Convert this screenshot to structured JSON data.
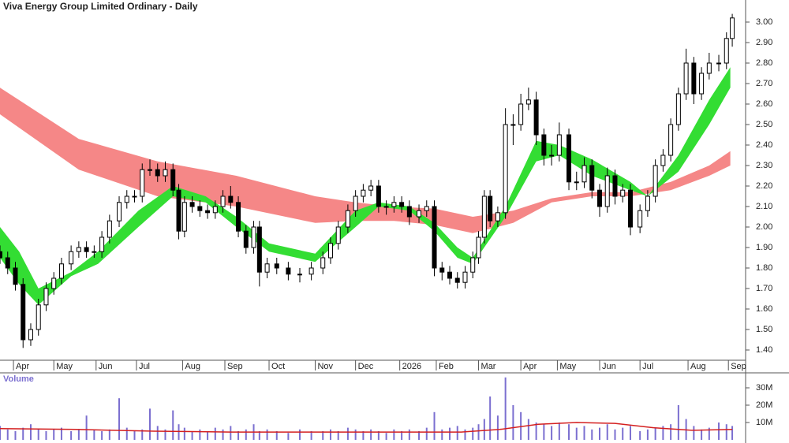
{
  "chart_data": [
    {
      "type": "candlestick",
      "title": "Viva Energy Group Limited Ordinary - Daily",
      "x": [
        0,
        4,
        8,
        12,
        16,
        20,
        24,
        28,
        32,
        37,
        41,
        45,
        49,
        53,
        57,
        62,
        66,
        70,
        74,
        78,
        82,
        86,
        90,
        93,
        96,
        100,
        104,
        108,
        112,
        116,
        120,
        124,
        128,
        132,
        135,
        139,
        144,
        150,
        156,
        162,
        168,
        172,
        176,
        181,
        185,
        189,
        193,
        197,
        201,
        205,
        209,
        213,
        218,
        222,
        226,
        230,
        234,
        238,
        242,
        246,
        249,
        252,
        255,
        259,
        263,
        267,
        271,
        275,
        279,
        283,
        287,
        291,
        296,
        300,
        304,
        308,
        312,
        316,
        320,
        324,
        328,
        333,
        337,
        341,
        345,
        349,
        353,
        357,
        361,
        365,
        369,
        374,
        378,
        381
      ],
      "open": [
        1.88,
        1.85,
        1.8,
        1.72,
        1.45,
        1.5,
        1.62,
        1.7,
        1.75,
        1.82,
        1.88,
        1.9,
        1.88,
        1.88,
        1.95,
        2.03,
        2.12,
        2.15,
        2.15,
        2.28,
        2.28,
        2.25,
        2.28,
        2.18,
        1.98,
        2.12,
        2.1,
        2.08,
        2.07,
        2.1,
        2.15,
        2.12,
        1.98,
        1.9,
        2.0,
        1.78,
        1.82,
        1.8,
        1.77,
        1.77,
        1.8,
        1.85,
        1.92,
        2.0,
        2.08,
        2.15,
        2.18,
        2.2,
        2.1,
        2.1,
        2.12,
        2.1,
        2.05,
        2.08,
        2.1,
        1.8,
        1.78,
        1.75,
        1.73,
        1.78,
        1.85,
        1.95,
        2.15,
        2.03,
        2.07,
        2.5,
        2.5,
        2.6,
        2.62,
        2.45,
        2.35,
        2.35,
        2.45,
        2.22,
        2.22,
        2.3,
        2.18,
        2.1,
        2.25,
        2.15,
        2.18,
        2.0,
        2.08,
        2.15,
        2.3,
        2.35,
        2.5,
        2.65,
        2.8,
        2.65,
        2.75,
        2.8,
        2.8,
        2.92
      ],
      "high": [
        1.91,
        1.88,
        1.83,
        1.75,
        1.53,
        1.65,
        1.73,
        1.78,
        1.85,
        1.91,
        1.93,
        1.93,
        1.91,
        1.98,
        2.06,
        2.15,
        2.18,
        2.18,
        2.31,
        2.33,
        2.31,
        2.32,
        2.31,
        2.21,
        2.15,
        2.15,
        2.13,
        2.11,
        2.13,
        2.18,
        2.2,
        2.15,
        2.01,
        2.03,
        2.03,
        1.85,
        1.85,
        1.83,
        1.8,
        1.83,
        1.88,
        1.95,
        2.03,
        2.11,
        2.18,
        2.21,
        2.23,
        2.23,
        2.13,
        2.15,
        2.15,
        2.13,
        2.11,
        2.13,
        2.13,
        1.83,
        1.81,
        1.78,
        1.81,
        1.88,
        1.98,
        2.18,
        2.18,
        2.1,
        2.58,
        2.55,
        2.65,
        2.68,
        2.66,
        2.48,
        2.4,
        2.51,
        2.48,
        2.27,
        2.34,
        2.33,
        2.21,
        2.29,
        2.28,
        2.21,
        2.21,
        2.11,
        2.18,
        2.33,
        2.38,
        2.53,
        2.68,
        2.87,
        2.83,
        2.78,
        2.85,
        2.84,
        2.95,
        3.04
      ],
      "low": [
        1.82,
        1.77,
        1.69,
        1.41,
        1.42,
        1.47,
        1.59,
        1.67,
        1.72,
        1.79,
        1.85,
        1.85,
        1.85,
        1.85,
        1.92,
        2.0,
        2.09,
        2.12,
        2.12,
        2.25,
        2.22,
        2.22,
        2.15,
        1.94,
        1.95,
        2.07,
        2.05,
        2.04,
        2.04,
        2.07,
        2.09,
        1.95,
        1.87,
        1.87,
        1.71,
        1.75,
        1.77,
        1.74,
        1.73,
        1.74,
        1.77,
        1.82,
        1.89,
        1.97,
        2.05,
        2.12,
        2.15,
        2.07,
        2.06,
        2.07,
        2.07,
        2.01,
        2.02,
        2.05,
        1.76,
        1.74,
        1.72,
        1.7,
        1.7,
        1.75,
        1.82,
        1.92,
        2.0,
        2.0,
        2.04,
        2.4,
        2.47,
        2.57,
        2.4,
        2.3,
        2.3,
        2.32,
        2.18,
        2.18,
        2.19,
        2.14,
        2.05,
        2.07,
        2.11,
        2.12,
        1.96,
        1.97,
        2.05,
        2.12,
        2.27,
        2.32,
        2.47,
        2.62,
        2.6,
        2.62,
        2.72,
        2.76,
        2.77,
        2.88
      ],
      "close": [
        1.85,
        1.8,
        1.72,
        1.45,
        1.5,
        1.62,
        1.7,
        1.75,
        1.82,
        1.88,
        1.9,
        1.88,
        1.88,
        1.95,
        2.03,
        2.12,
        2.15,
        2.15,
        2.28,
        2.28,
        2.25,
        2.28,
        2.18,
        1.98,
        2.12,
        2.1,
        2.08,
        2.07,
        2.1,
        2.15,
        2.12,
        1.98,
        1.9,
        2.0,
        1.78,
        1.82,
        1.8,
        1.77,
        1.77,
        1.8,
        1.85,
        1.92,
        2.0,
        2.08,
        2.15,
        2.18,
        2.2,
        2.1,
        2.1,
        2.12,
        2.1,
        2.05,
        2.08,
        2.1,
        1.8,
        1.78,
        1.75,
        1.73,
        1.78,
        1.85,
        1.95,
        2.15,
        2.03,
        2.07,
        2.5,
        2.5,
        2.6,
        2.62,
        2.45,
        2.35,
        2.35,
        2.45,
        2.22,
        2.22,
        2.3,
        2.18,
        2.1,
        2.25,
        2.15,
        2.18,
        2.0,
        2.08,
        2.15,
        2.3,
        2.35,
        2.5,
        2.65,
        2.8,
        2.65,
        2.75,
        2.8,
        2.8,
        2.92,
        3.02
      ],
      "long_band": {
        "color": "#f47a7a",
        "x": [
          0,
          41,
          82,
          123,
          164,
          185,
          205,
          226,
          246,
          267,
          287,
          308,
          328,
          349,
          369,
          380
        ],
        "upper": [
          2.68,
          2.43,
          2.32,
          2.25,
          2.15,
          2.12,
          2.1,
          2.09,
          2.05,
          2.08,
          2.14,
          2.17,
          2.17,
          2.22,
          2.3,
          2.37
        ],
        "lower": [
          2.55,
          2.28,
          2.15,
          2.1,
          2.02,
          2.03,
          2.03,
          2.01,
          1.97,
          2.02,
          2.12,
          2.15,
          2.15,
          2.18,
          2.25,
          2.3
        ]
      },
      "short_band": {
        "color": "#33dd33",
        "x": [
          0,
          10,
          20,
          37,
          51,
          72,
          90,
          107,
          123,
          140,
          164,
          185,
          197,
          213,
          226,
          238,
          246,
          263,
          279,
          291,
          308,
          328,
          337,
          353,
          369,
          380
        ],
        "upper": [
          2.0,
          1.88,
          1.7,
          1.78,
          1.88,
          2.08,
          2.2,
          2.15,
          2.05,
          1.92,
          1.87,
          2.08,
          2.12,
          2.1,
          2.02,
          1.9,
          1.85,
          2.1,
          2.42,
          2.4,
          2.33,
          2.22,
          2.15,
          2.35,
          2.62,
          2.78
        ],
        "lower": [
          1.85,
          1.72,
          1.62,
          1.76,
          1.82,
          2.0,
          2.15,
          2.12,
          2.0,
          1.88,
          1.83,
          2.0,
          2.1,
          2.08,
          1.98,
          1.85,
          1.82,
          2.05,
          2.32,
          2.35,
          2.25,
          2.18,
          2.15,
          2.27,
          2.5,
          2.68
        ]
      },
      "xlim": [
        0,
        390
      ],
      "xticks": [
        {
          "value": 7,
          "label": "Apr"
        },
        {
          "value": 28,
          "label": "May"
        },
        {
          "value": 50,
          "label": "Jun"
        },
        {
          "value": 71,
          "label": "Jul"
        },
        {
          "value": 95,
          "label": "Aug"
        },
        {
          "value": 117,
          "label": "Sep"
        },
        {
          "value": 140,
          "label": "Oct"
        },
        {
          "value": 164,
          "label": "Nov"
        },
        {
          "value": 185,
          "label": "Dec"
        },
        {
          "value": 208,
          "label": "2026"
        },
        {
          "value": 227,
          "label": "Feb"
        },
        {
          "value": 249,
          "label": "Mar"
        },
        {
          "value": 271,
          "label": "Apr"
        },
        {
          "value": 290,
          "label": "May"
        },
        {
          "value": 312,
          "label": "Jun"
        },
        {
          "value": 333,
          "label": "Jul"
        },
        {
          "value": 358,
          "label": "Aug"
        },
        {
          "value": 379,
          "label": "Sep"
        }
      ],
      "ylim": [
        1.35,
        3.1
      ],
      "yticks": [
        {
          "value": 1.4,
          "label": "1.40"
        },
        {
          "value": 1.5,
          "label": "1.50"
        },
        {
          "value": 1.6,
          "label": "1.60"
        },
        {
          "value": 1.7,
          "label": "1.70"
        },
        {
          "value": 1.8,
          "label": "1.80"
        },
        {
          "value": 1.9,
          "label": "1.90"
        },
        {
          "value": 2.0,
          "label": "2.00"
        },
        {
          "value": 2.1,
          "label": "2.10"
        },
        {
          "value": 2.2,
          "label": "2.20"
        },
        {
          "value": 2.3,
          "label": "2.30"
        },
        {
          "value": 2.4,
          "label": "2.40"
        },
        {
          "value": 2.5,
          "label": "2.50"
        },
        {
          "value": 2.6,
          "label": "2.60"
        },
        {
          "value": 2.7,
          "label": "2.70"
        },
        {
          "value": 2.8,
          "label": "2.80"
        },
        {
          "value": 2.9,
          "label": "2.90"
        },
        {
          "value": 3.0,
          "label": "3.00"
        }
      ]
    },
    {
      "type": "bar",
      "title": "Volume",
      "color": "#7b6fd0",
      "x": [
        0,
        4,
        8,
        12,
        16,
        20,
        24,
        28,
        32,
        37,
        41,
        45,
        49,
        53,
        57,
        62,
        66,
        70,
        74,
        78,
        82,
        86,
        90,
        93,
        96,
        100,
        104,
        108,
        112,
        116,
        120,
        124,
        128,
        132,
        135,
        139,
        144,
        150,
        156,
        162,
        168,
        172,
        176,
        181,
        185,
        189,
        193,
        197,
        201,
        205,
        209,
        213,
        218,
        222,
        226,
        230,
        234,
        238,
        242,
        246,
        249,
        252,
        255,
        259,
        263,
        267,
        271,
        275,
        279,
        283,
        287,
        291,
        296,
        300,
        304,
        308,
        312,
        316,
        320,
        324,
        328,
        333,
        337,
        341,
        345,
        349,
        353,
        357,
        361,
        365,
        369,
        374,
        378,
        381
      ],
      "values": [
        8000000,
        6000000,
        5000000,
        7000000,
        9000000,
        6000000,
        5000000,
        6000000,
        7000000,
        5000000,
        6000000,
        14000000,
        6000000,
        5000000,
        6000000,
        24000000,
        7000000,
        5000000,
        6000000,
        18000000,
        8000000,
        6000000,
        17000000,
        9000000,
        7000000,
        5000000,
        6000000,
        5000000,
        7000000,
        6000000,
        8000000,
        5000000,
        6000000,
        9000000,
        5000000,
        6000000,
        5000000,
        4000000,
        6000000,
        5000000,
        5000000,
        6000000,
        5000000,
        7000000,
        6000000,
        5000000,
        6000000,
        5000000,
        4000000,
        6000000,
        5000000,
        6000000,
        5000000,
        7000000,
        16000000,
        6000000,
        7000000,
        8000000,
        6000000,
        7000000,
        9000000,
        12000000,
        25000000,
        14000000,
        36000000,
        20000000,
        16000000,
        12000000,
        10000000,
        9000000,
        8000000,
        10000000,
        9000000,
        7000000,
        8000000,
        6000000,
        7000000,
        9000000,
        6000000,
        7000000,
        8000000,
        5000000,
        6000000,
        7000000,
        8000000,
        9000000,
        20000000,
        12000000,
        8000000,
        6000000,
        7000000,
        10000000,
        9000000,
        8000000
      ],
      "average": {
        "color": "#d42020",
        "x": [
          0,
          40,
          80,
          120,
          160,
          200,
          240,
          260,
          280,
          300,
          320,
          340,
          360,
          381
        ],
        "values": [
          6500000,
          6000000,
          5000000,
          4500000,
          4500000,
          4500000,
          4500000,
          6000000,
          9000000,
          10000000,
          9500000,
          7000000,
          5500000,
          6000000
        ]
      },
      "xlim": [
        0,
        390
      ],
      "ylim": [
        0,
        37500000
      ],
      "yticks": [
        {
          "value": 10000000,
          "label": "10M"
        },
        {
          "value": 20000000,
          "label": "20M"
        },
        {
          "value": 30000000,
          "label": "30M"
        }
      ]
    }
  ]
}
